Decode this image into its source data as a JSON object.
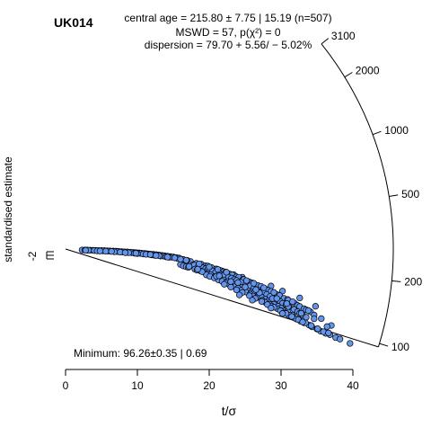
{
  "chart_data": {
    "type": "scatter",
    "subtype": "radial-plot",
    "sample_label": "UK014",
    "title_lines": [
      "central age = 215.80 ± 7.75 | 15.19  (n=507)",
      "MSWD = 57, p(χ²) = 0",
      "dispersion = 79.70 + 5.56/ − 5.02%"
    ],
    "xlabel": "t/σ",
    "ylabel": "standardised estimate",
    "x_ticks": [
      0,
      10,
      20,
      30,
      40
    ],
    "xlim": [
      0,
      40
    ],
    "y_ticks": [
      -2
    ],
    "z_ticks": [
      100,
      200,
      500,
      1000,
      2000,
      3100
    ],
    "z_range": [
      96.26,
      3100
    ],
    "central_age": 215.8,
    "minimum_age_label": "Minimum: 96.26±0.35 | 0.69",
    "minimum_age": 96.26,
    "n": 507,
    "point_color": "#6495ed",
    "point_stroke": "#000000",
    "points": [
      [
        2.3,
        227,
        0
      ],
      [
        2.7,
        231,
        0
      ],
      [
        3.0,
        235,
        0
      ],
      [
        3.4,
        238,
        0
      ],
      [
        3.8,
        240,
        0
      ],
      [
        4.2,
        241,
        0
      ],
      [
        4.6,
        242,
        0
      ],
      [
        5.0,
        242,
        0
      ],
      [
        5.4,
        243,
        0
      ],
      [
        5.8,
        243,
        0
      ],
      [
        6.2,
        243,
        0
      ],
      [
        6.6,
        242,
        0
      ],
      [
        7.0,
        242,
        0
      ],
      [
        7.4,
        241,
        0
      ],
      [
        7.8,
        240,
        0
      ],
      [
        8.2,
        239,
        0
      ],
      [
        8.6,
        238,
        0
      ],
      [
        9.0,
        237,
        0
      ],
      [
        9.4,
        236,
        0
      ],
      [
        9.8,
        235,
        0
      ],
      [
        10.2,
        234,
        0
      ],
      [
        10.6,
        233,
        0
      ],
      [
        11.0,
        232,
        0
      ],
      [
        11.4,
        230,
        0
      ],
      [
        11.8,
        229,
        0
      ],
      [
        12.2,
        228,
        0
      ],
      [
        12.6,
        226,
        0
      ],
      [
        13.0,
        225,
        0
      ],
      [
        13.4,
        223,
        0
      ],
      [
        13.8,
        222,
        0
      ],
      [
        14.2,
        220,
        0
      ],
      [
        14.6,
        219,
        0
      ],
      [
        15.0,
        217,
        0
      ],
      [
        15.4,
        215,
        0
      ],
      [
        15.8,
        213,
        0
      ],
      [
        3.2,
        230,
        0
      ],
      [
        4.0,
        234,
        0
      ],
      [
        5.2,
        236,
        0
      ],
      [
        6.0,
        237,
        0
      ],
      [
        7.2,
        236,
        0
      ],
      [
        8.0,
        234,
        0
      ],
      [
        9.2,
        232,
        0
      ],
      [
        10.4,
        229,
        0
      ],
      [
        11.6,
        226,
        0
      ],
      [
        12.8,
        222,
        0
      ],
      [
        13.6,
        219,
        0
      ],
      [
        14.8,
        215,
        0
      ],
      [
        2.8,
        225,
        0
      ],
      [
        4.4,
        229,
        0
      ],
      [
        5.6,
        231,
        0
      ],
      [
        6.8,
        231,
        0
      ],
      [
        8.4,
        229,
        0
      ],
      [
        9.6,
        227,
        0
      ],
      [
        10.8,
        224,
        0
      ],
      [
        12.0,
        221,
        0
      ],
      [
        13.2,
        217,
        0
      ],
      [
        14.4,
        213,
        0
      ],
      [
        15.6,
        209,
        0
      ],
      [
        16.2,
        206,
        0
      ],
      [
        17.4,
        198,
        0
      ],
      [
        18.2,
        192,
        0
      ],
      [
        19.0,
        186,
        0
      ],
      [
        20.6,
        176,
        0
      ],
      [
        21.8,
        172,
        0
      ],
      [
        24.6,
        161,
        0
      ],
      [
        28.6,
        150,
        0
      ],
      [
        30.2,
        143,
        0
      ],
      [
        32.6,
        136,
        0
      ],
      [
        34.8,
        127,
        0
      ],
      [
        16.8,
        203,
        0
      ],
      [
        19.8,
        184,
        0
      ],
      [
        23.4,
        165,
        0
      ],
      [
        16.4,
        205.9,
        0
      ],
      [
        16.9,
        203.4,
        0
      ],
      [
        16.8,
        203.1,
        0
      ],
      [
        18.9,
        189.9,
        0
      ],
      [
        19.5,
        184.8,
        0
      ],
      [
        19.8,
        184.6,
        0
      ],
      [
        20.3,
        180.7,
        0
      ],
      [
        21.0,
        177.0,
        0
      ],
      [
        21.5,
        174.1,
        0
      ],
      [
        22.0,
        170.4,
        0
      ],
      [
        22.3,
        169.4,
        0
      ],
      [
        22.8,
        165.6,
        0
      ],
      [
        23.2,
        163.7,
        0
      ],
      [
        23.8,
        159.5,
        0
      ],
      [
        24.1,
        158.9,
        0
      ],
      [
        24.7,
        154.7,
        0
      ],
      [
        24.8,
        154.7,
        0
      ],
      [
        25.6,
        150.5,
        0
      ],
      [
        26.0,
        149.2,
        0
      ],
      [
        26.3,
        146.8,
        0
      ],
      [
        26.8,
        145.1,
        0
      ],
      [
        27.2,
        144.6,
        0
      ],
      [
        27.9,
        139.5,
        0
      ],
      [
        28.2,
        138.6,
        0
      ],
      [
        28.6,
        137.2,
        0
      ],
      [
        29.2,
        133.8,
        0
      ],
      [
        29.5,
        132.7,
        0
      ],
      [
        29.8,
        132.2,
        0
      ],
      [
        30.4,
        128.3,
        0
      ],
      [
        30.9,
        127.8,
        0
      ],
      [
        31.0,
        126.6,
        0
      ],
      [
        31.9,
        123.5,
        0
      ],
      [
        32.3,
        121.1,
        0
      ],
      [
        32.6,
        120.3,
        0
      ],
      [
        33.2,
        118.3,
        0
      ],
      [
        33.5,
        117.2,
        0
      ],
      [
        34.1,
        115.8,
        0
      ],
      [
        34.6,
        112.5,
        0
      ],
      [
        17.7,
        181.5,
        0
      ],
      [
        17.9,
        181.5,
        0
      ],
      [
        18.5,
        177.9,
        0
      ],
      [
        19.1,
        174.3,
        0
      ],
      [
        19.5,
        172.4,
        0
      ],
      [
        19.8,
        170.1,
        0
      ],
      [
        20.5,
        166.9,
        0
      ],
      [
        20.9,
        164.2,
        0
      ],
      [
        21.4,
        160.7,
        0
      ],
      [
        21.9,
        158.5,
        0
      ],
      [
        22.1,
        157.7,
        0
      ],
      [
        22.7,
        154.0,
        0
      ],
      [
        23.1,
        152.3,
        0
      ],
      [
        23.5,
        149.6,
        0
      ],
      [
        23.8,
        148.4,
        0
      ],
      [
        24.4,
        145.1,
        0
      ],
      [
        25.1,
        142.7,
        0
      ],
      [
        25.4,
        139.7,
        0
      ],
      [
        25.7,
        140.0,
        0
      ],
      [
        26.2,
        135.8,
        0
      ],
      [
        27.0,
        133.6,
        0
      ],
      [
        27.2,
        131.2,
        0
      ],
      [
        27.6,
        130.7,
        0
      ],
      [
        28.0,
        128.3,
        0
      ],
      [
        28.5,
        126.2,
        0
      ],
      [
        29.1,
        123.4,
        0
      ],
      [
        29.3,
        122.2,
        0
      ],
      [
        29.9,
        120.5,
        0
      ],
      [
        30.2,
        118.2,
        0
      ],
      [
        30.7,
        117.8,
        0
      ],
      [
        31.1,
        114.9,
        0
      ],
      [
        31.8,
        112.9,
        0
      ],
      [
        32.3,
        110.7,
        0
      ],
      [
        32.6,
        109.2,
        0
      ],
      [
        33.0,
        107.8,
        0
      ],
      [
        33.5,
        105.9,
        0
      ],
      [
        16.0,
        175.5,
        0
      ],
      [
        16.4,
        170.4,
        0
      ],
      [
        16.8,
        168.3,
        0
      ],
      [
        17.1,
        166.8,
        0
      ],
      [
        18.0,
        163.3,
        0
      ],
      [
        18.3,
        160.3,
        0
      ],
      [
        18.8,
        159.5,
        0
      ],
      [
        19.4,
        155.8,
        0
      ],
      [
        19.7,
        152.6,
        0
      ],
      [
        20.2,
        151.6,
        0
      ],
      [
        20.8,
        147.8,
        0
      ],
      [
        21.2,
        146.2,
        0
      ],
      [
        21.6,
        143.4,
        0
      ],
      [
        22.0,
        141.9,
        0
      ],
      [
        22.5,
        139.5,
        0
      ],
      [
        23.1,
        137.7,
        0
      ],
      [
        23.4,
        135.4,
        0
      ],
      [
        23.8,
        133.1,
        0
      ],
      [
        24.5,
        131.4,
        0
      ],
      [
        24.9,
        130.1,
        0
      ],
      [
        25.4,
        127.0,
        0
      ],
      [
        25.9,
        125.5,
        0
      ],
      [
        26.1,
        123.9,
        0
      ],
      [
        26.8,
        121.4,
        0
      ],
      [
        27.3,
        119.9,
        0
      ],
      [
        27.8,
        117.9,
        0
      ],
      [
        28.2,
        115.7,
        0
      ],
      [
        28.5,
        114.6,
        0
      ],
      [
        29.0,
        112.5,
        0
      ],
      [
        29.6,
        110.9,
        0
      ],
      [
        30.0,
        109.3,
        0
      ],
      [
        30.5,
        106.3,
        0
      ],
      [
        30.9,
        106.6,
        0
      ],
      [
        31.6,
        103.5,
        0
      ],
      [
        19.6,
        148.1,
        0
      ],
      [
        20.1,
        145.1,
        0
      ],
      [
        20.7,
        142.7,
        0
      ],
      [
        21.3,
        139.2,
        0
      ],
      [
        21.8,
        137.1,
        0
      ],
      [
        22.3,
        134.5,
        0
      ],
      [
        22.8,
        132.0,
        0
      ],
      [
        23.5,
        129.1,
        0
      ],
      [
        24.0,
        127.8,
        0
      ],
      [
        24.5,
        124.9,
        0
      ],
      [
        25.1,
        123.2,
        0
      ],
      [
        25.7,
        120.6,
        0
      ],
      [
        26.1,
        118.0,
        0
      ],
      [
        26.6,
        116.4,
        0
      ],
      [
        27.4,
        114.0,
        0
      ],
      [
        27.8,
        111.9,
        0
      ],
      [
        28.4,
        110.4,
        0
      ],
      [
        28.7,
        108.5,
        0
      ],
      [
        29.5,
        106.6,
        0
      ],
      [
        29.9,
        105.1,
        0
      ],
      [
        30.6,
        103.5,
        0
      ],
      [
        31.1,
        101.8,
        0
      ],
      [
        31.6,
        100.9,
        0
      ],
      [
        32.1,
        99.3,
        0
      ],
      [
        32.7,
        98.1,
        0
      ],
      [
        33.2,
        97.4,
        0
      ],
      [
        33.9,
        96.5,
        0
      ],
      [
        34.3,
        95.3,
        0
      ],
      [
        35.0,
        94.6,
        0
      ],
      [
        35.5,
        93.4,
        0
      ],
      [
        36.2,
        92.8,
        0
      ],
      [
        22.1,
        130.0,
        0
      ],
      [
        23.0,
        126.5,
        0
      ],
      [
        23.8,
        123.0,
        0
      ],
      [
        24.6,
        120.1,
        0
      ],
      [
        25.6,
        117.0,
        0
      ],
      [
        26.4,
        114.2,
        0
      ],
      [
        27.3,
        111.8,
        0
      ],
      [
        28.1,
        108.9,
        0
      ],
      [
        29.0,
        107.3,
        0
      ],
      [
        29.9,
        104.7,
        0
      ],
      [
        30.7,
        102.9,
        0
      ],
      [
        31.5,
        101.0,
        0
      ],
      [
        32.4,
        99.2,
        0
      ],
      [
        33.4,
        98.0,
        0
      ],
      [
        34.2,
        96.6,
        0
      ],
      [
        35.1,
        95.2,
        0
      ],
      [
        35.9,
        93.9,
        0
      ],
      [
        36.8,
        92.9,
        0
      ],
      [
        37.6,
        91.8,
        0
      ],
      [
        7.6,
        230.6,
        0
      ],
      [
        8.8,
        229.8,
        0
      ],
      [
        10.0,
        225.6,
        0
      ],
      [
        11.2,
        223.2,
        0
      ],
      [
        12.4,
        219.7,
        0
      ],
      [
        13.0,
        219.4,
        0
      ],
      [
        14.0,
        214.6,
        0
      ],
      [
        15.2,
        212.2,
        0
      ],
      [
        6.4,
        233.3,
        0
      ],
      [
        9.8,
        228.0,
        0
      ],
      [
        11.8,
        223.9,
        0
      ],
      [
        14.2,
        213.3,
        0
      ],
      [
        4.8,
        231.4,
        0
      ],
      [
        8.3,
        226.8,
        0
      ],
      [
        12.6,
        218.8,
        0
      ],
      [
        16.0,
        206.4,
        0
      ],
      [
        18.6,
        190.9,
        0
      ],
      [
        20.0,
        182.0,
        0
      ],
      [
        21.2,
        176.1,
        0
      ],
      [
        22.4,
        169.8,
        0
      ],
      [
        25.2,
        153.0,
        0
      ],
      [
        26.2,
        148.8,
        0
      ],
      [
        27.6,
        142.3,
        0
      ],
      [
        29.0,
        136.2,
        0
      ],
      [
        31.6,
        125.7,
        0
      ],
      [
        33.8,
        117.1,
        0
      ],
      [
        35.6,
        110.0,
        0
      ],
      [
        37.0,
        104.5,
        0
      ],
      [
        19.0,
        157.6,
        0
      ],
      [
        21.0,
        149.8,
        0
      ],
      [
        23.0,
        141.7,
        0
      ],
      [
        25.0,
        134.8,
        0
      ],
      [
        27.0,
        128.5,
        0
      ],
      [
        28.8,
        122.7,
        0
      ],
      [
        31.0,
        115.1,
        0
      ],
      [
        32.8,
        109.6,
        0
      ],
      [
        17.2,
        171.3,
        0
      ],
      [
        18.4,
        165.0,
        0
      ],
      [
        21.4,
        153.2,
        0
      ],
      [
        24.0,
        142.9,
        0
      ],
      [
        26.5,
        133.8,
        0
      ],
      [
        29.4,
        124.6,
        0
      ],
      [
        30.8,
        119.8,
        0
      ],
      [
        34.6,
        106.9,
        0
      ],
      [
        36.4,
        101.5,
        0
      ],
      [
        24.2,
        112.9,
        0
      ],
      [
        26.0,
        109.4,
        0
      ],
      [
        28.6,
        104.6,
        0
      ],
      [
        30.2,
        101.3,
        0
      ],
      [
        33.0,
        97.8,
        0
      ],
      [
        36.6,
        94.4,
        0
      ],
      [
        38.2,
        91.6,
        0
      ],
      [
        39.6,
        90.6,
        0
      ]
    ]
  }
}
